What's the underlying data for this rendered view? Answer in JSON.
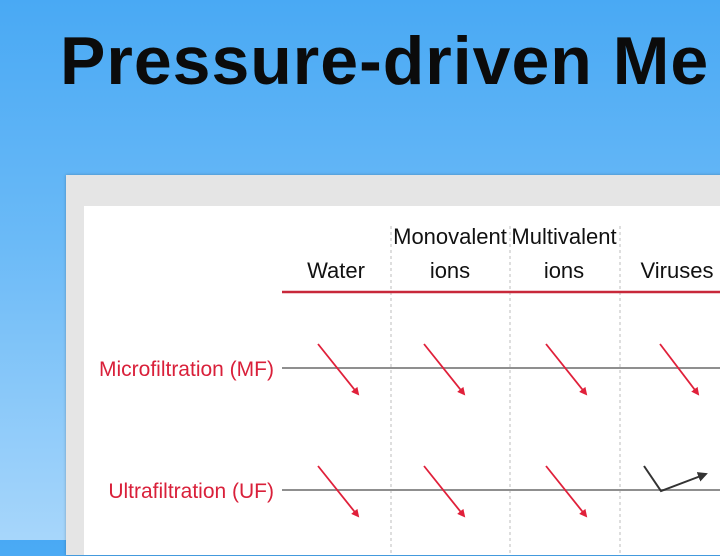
{
  "slide": {
    "title": "Pressure-driven Me"
  },
  "diagram": {
    "columns": [
      {
        "line1": "",
        "line2": "Water"
      },
      {
        "line1": "Monovalent",
        "line2": "ions"
      },
      {
        "line1": "Multivalent",
        "line2": "ions"
      },
      {
        "line1": "",
        "line2": "Viruses"
      }
    ],
    "rows": [
      {
        "label": "Microfiltration (MF)",
        "outcomes": [
          "pass",
          "pass",
          "pass",
          "pass"
        ]
      },
      {
        "label": "Ultrafiltration (UF)",
        "outcomes": [
          "pass",
          "pass",
          "pass",
          "reject"
        ]
      }
    ],
    "colors": {
      "label": "#d9203a",
      "header_line": "#c8283a",
      "membrane": "#8f8f8f",
      "pass_arrow": "#e0203a",
      "reject_arrow": "#333333",
      "column_divider": "#bdbdbd",
      "header_text": "#111111"
    }
  }
}
